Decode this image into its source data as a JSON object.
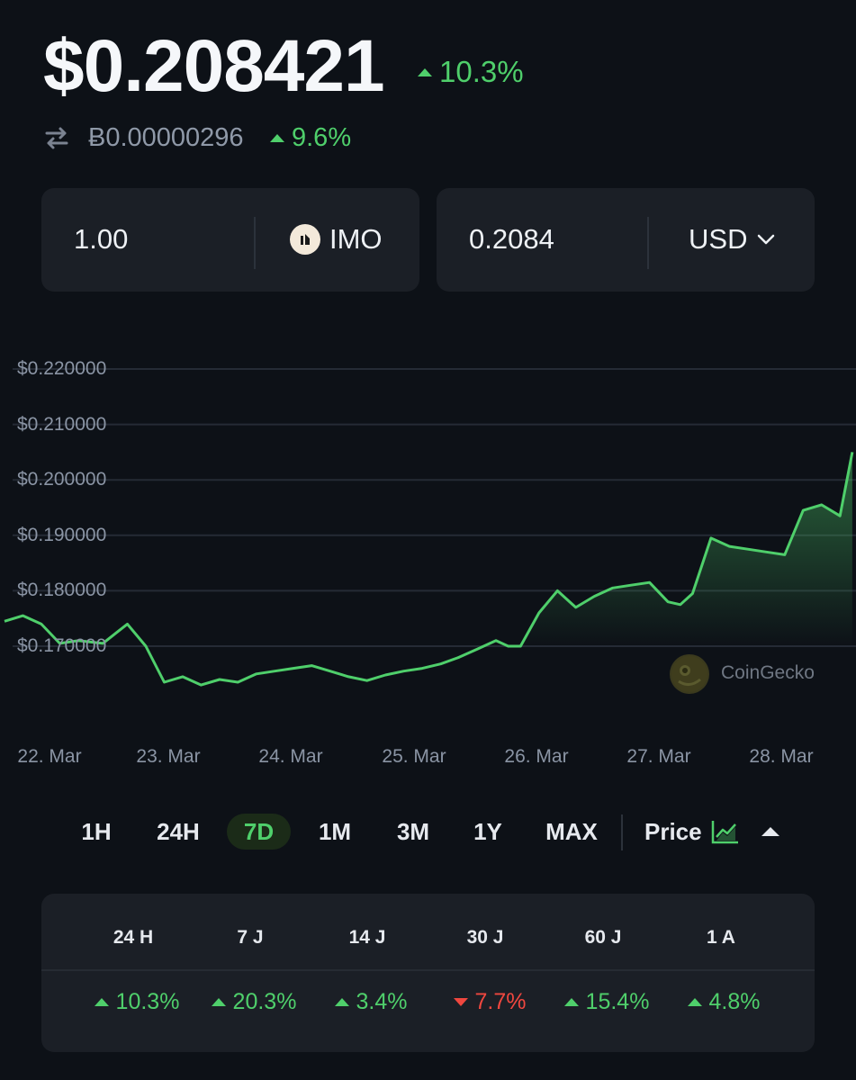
{
  "header": {
    "price": "$0.208421",
    "change": "10.3%",
    "btc_price": "Ƀ0.00000296",
    "btc_change": "9.6%"
  },
  "converter": {
    "amount": "1.00",
    "token": "IMO",
    "converted": "0.2084",
    "currency": "USD"
  },
  "chart_data": {
    "type": "area",
    "y_tick_labels": [
      "$0.220000",
      "$0.210000",
      "$0.200000",
      "$0.190000",
      "$0.180000",
      "$0.170000"
    ],
    "x_tick_labels": [
      "22. Mar",
      "23. Mar",
      "24. Mar",
      "25. Mar",
      "26. Mar",
      "27. Mar",
      "28. Mar"
    ],
    "ylim": [
      0.16,
      0.225
    ],
    "xlim": [
      0,
      6.9
    ],
    "grid": true,
    "line_color": "#4fcf6b",
    "x": [
      0,
      0.15,
      0.3,
      0.45,
      0.6,
      0.8,
      1.0,
      1.15,
      1.3,
      1.45,
      1.6,
      1.75,
      1.9,
      2.05,
      2.2,
      2.35,
      2.5,
      2.65,
      2.8,
      2.95,
      3.1,
      3.25,
      3.4,
      3.55,
      3.7,
      3.85,
      4.0,
      4.1,
      4.2,
      4.35,
      4.5,
      4.65,
      4.8,
      4.95,
      5.1,
      5.25,
      5.4,
      5.5,
      5.6,
      5.75,
      5.9,
      6.05,
      6.2,
      6.35,
      6.5,
      6.65,
      6.8,
      6.9
    ],
    "values": [
      0.1745,
      0.1755,
      0.174,
      0.1705,
      0.171,
      0.1705,
      0.174,
      0.17,
      0.1635,
      0.1645,
      0.163,
      0.164,
      0.1635,
      0.165,
      0.1655,
      0.166,
      0.1665,
      0.1655,
      0.1645,
      0.1638,
      0.1648,
      0.1655,
      0.166,
      0.1668,
      0.168,
      0.1695,
      0.171,
      0.17,
      0.17,
      0.176,
      0.18,
      0.177,
      0.179,
      0.1805,
      0.181,
      0.1815,
      0.178,
      0.1775,
      0.1795,
      0.1895,
      0.188,
      0.1875,
      0.187,
      0.1865,
      0.1945,
      0.1955,
      0.1935,
      0.205
    ]
  },
  "watermark": {
    "text": "CoinGecko"
  },
  "range_tabs": [
    "1H",
    "24H",
    "7D",
    "1M",
    "3M",
    "1Y",
    "MAX"
  ],
  "active_tab": "7D",
  "metric_selector": "Price",
  "performance": {
    "headers": [
      "24 H",
      "7 J",
      "14 J",
      "30 J",
      "60 J",
      "1 A"
    ],
    "values": [
      "10.3%",
      "20.3%",
      "3.4%",
      "7.7%",
      "15.4%",
      "4.8%"
    ],
    "directions": [
      "up",
      "up",
      "up",
      "down",
      "up",
      "up"
    ]
  },
  "colors": {
    "background": "#0d1117",
    "panel": "#1b1f26",
    "up": "#4fcf6b",
    "down": "#f0473f"
  }
}
